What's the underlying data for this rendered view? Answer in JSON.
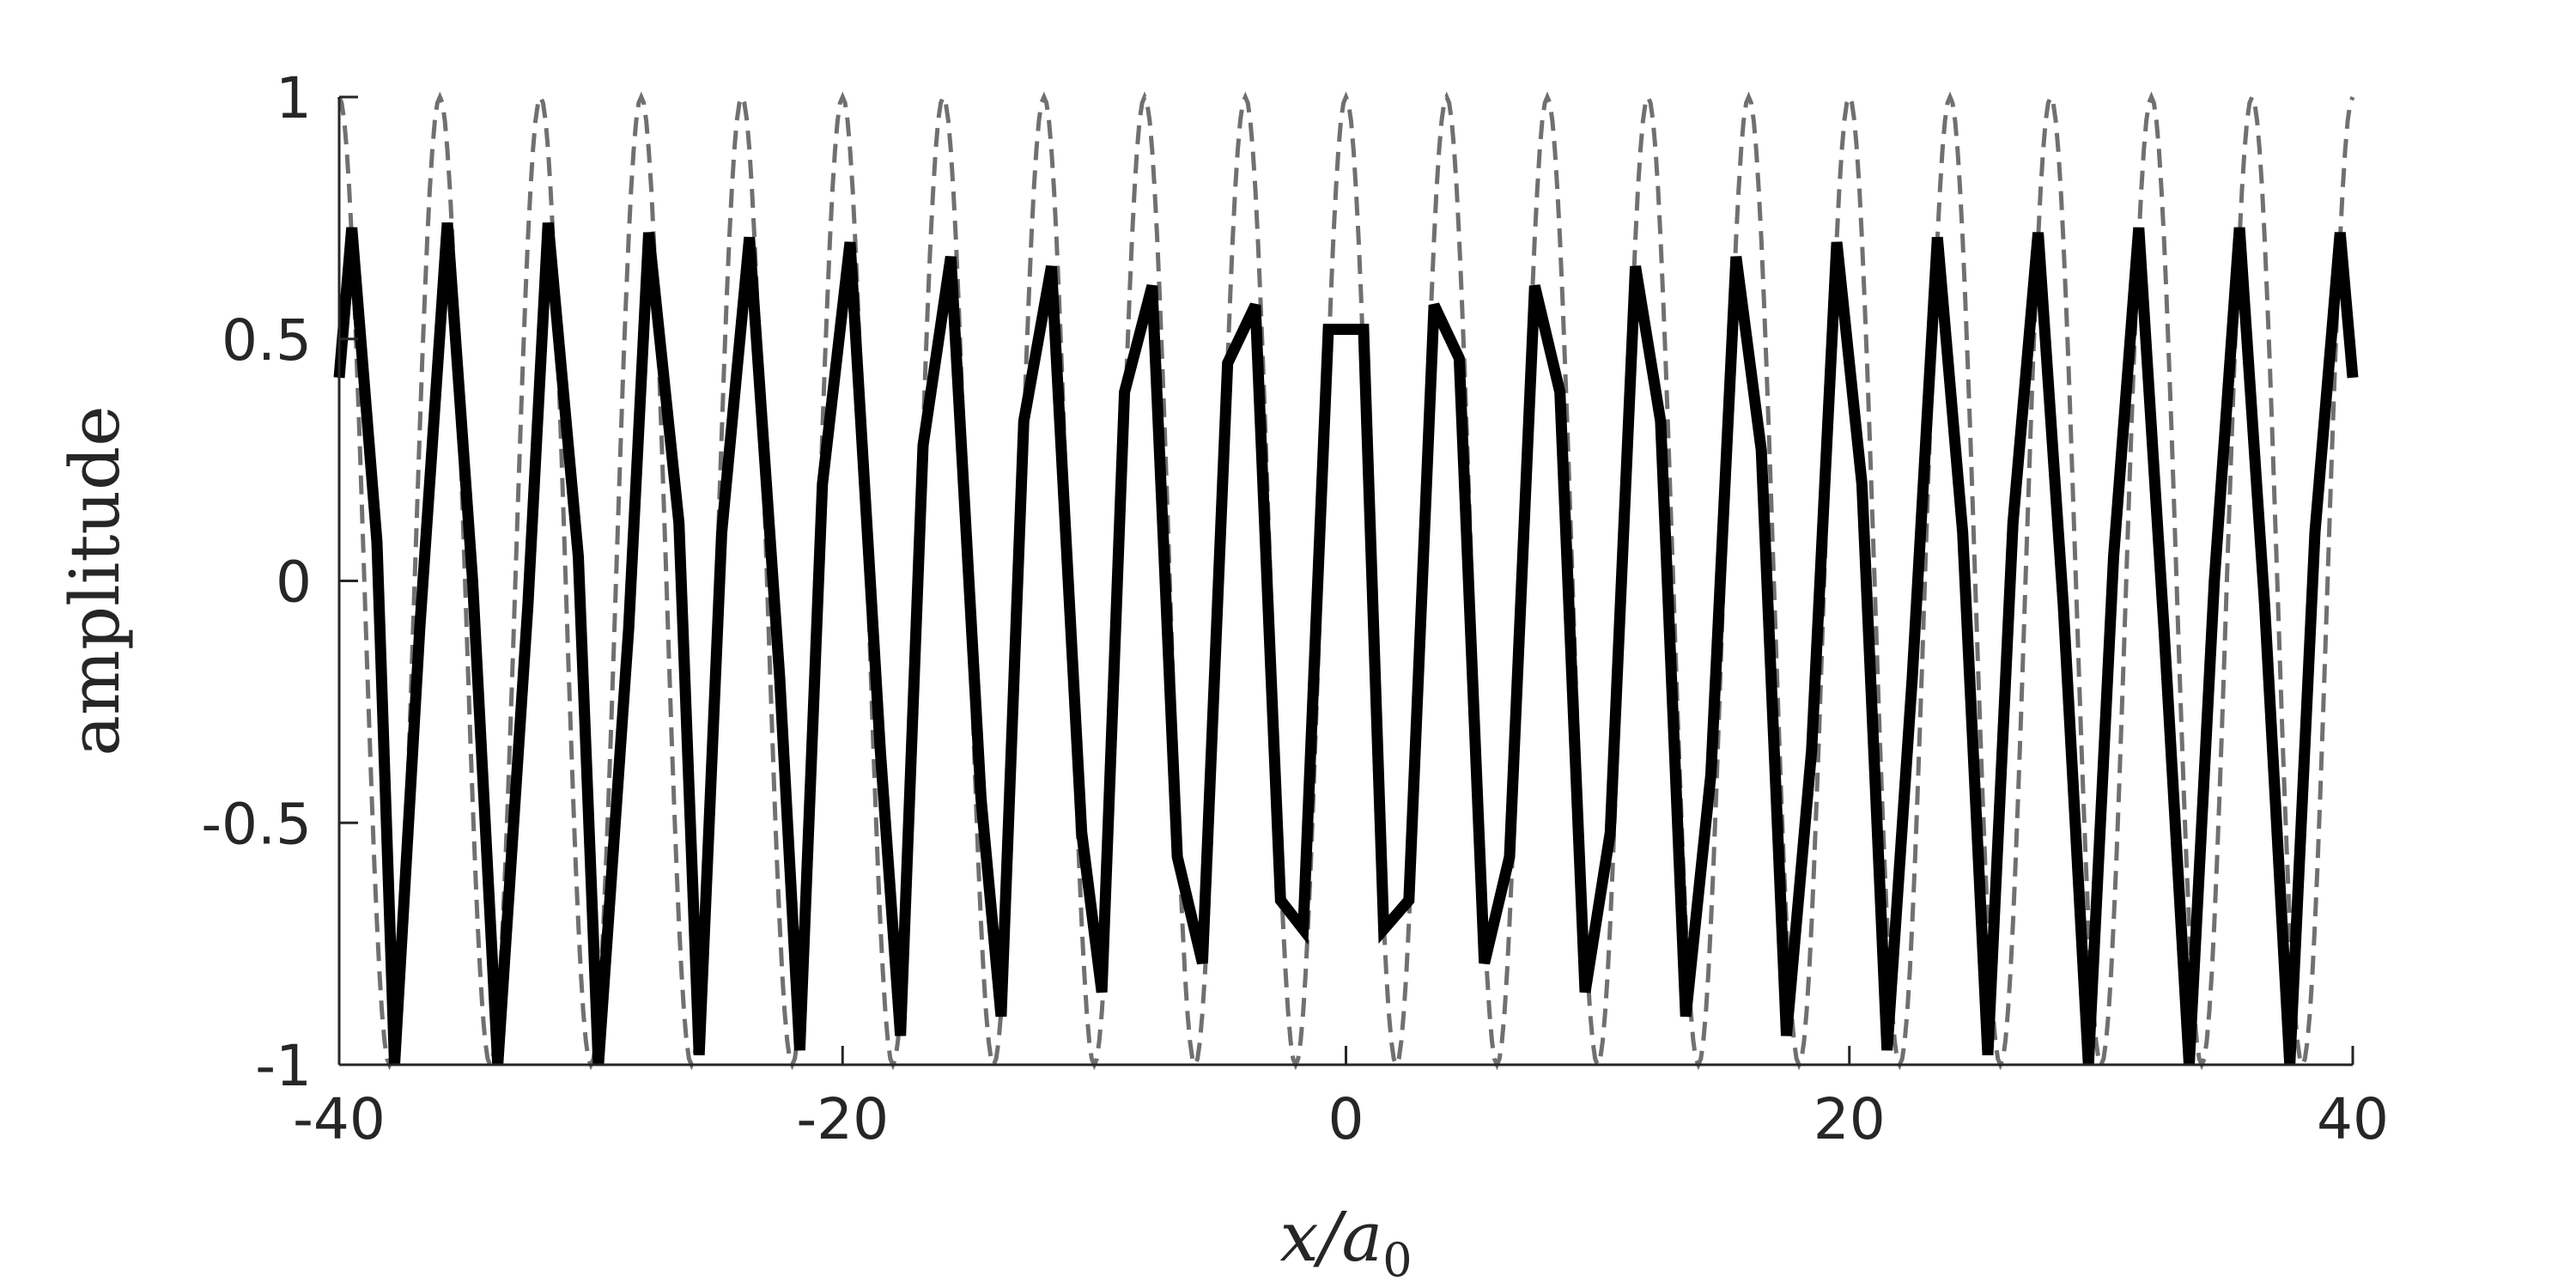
{
  "chart_data": {
    "type": "line",
    "xlabel": "x/a",
    "xlabel_subscript": "0",
    "ylabel": "amplitude",
    "xlim": [
      -40,
      40
    ],
    "ylim": [
      -1,
      1
    ],
    "xticks": [
      "-40",
      "-20",
      "0",
      "20",
      "40"
    ],
    "yticks": [
      "-1",
      "-0.5",
      "0",
      "0.5",
      "1"
    ],
    "grid": false,
    "series": [
      {
        "style": "dashed",
        "color": "#707070",
        "wave": {
          "amplitude": 1,
          "period": 4.0,
          "phase_x_of_max": 0
        },
        "points": []
      },
      {
        "style": "solid",
        "color": "#000000",
        "points": [
          [
            -40,
            0.42
          ],
          [
            -39.5,
            0.73
          ],
          [
            -38.5,
            0.08
          ],
          [
            -37.8,
            -1.0
          ],
          [
            -36.8,
            -0.1
          ],
          [
            -35.7,
            0.74
          ],
          [
            -34.7,
            0.0
          ],
          [
            -33.7,
            -1.0
          ],
          [
            -32.5,
            -0.05
          ],
          [
            -31.7,
            0.74
          ],
          [
            -30.5,
            0.05
          ],
          [
            -29.7,
            -1.0
          ],
          [
            -28.5,
            -0.1
          ],
          [
            -27.7,
            0.72
          ],
          [
            -26.5,
            0.12
          ],
          [
            -25.7,
            -0.98
          ],
          [
            -24.8,
            0.1
          ],
          [
            -23.7,
            0.71
          ],
          [
            -22.5,
            -0.2
          ],
          [
            -21.7,
            -0.97
          ],
          [
            -20.8,
            0.2
          ],
          [
            -19.7,
            0.7
          ],
          [
            -18.5,
            -0.35
          ],
          [
            -17.7,
            -0.94
          ],
          [
            -16.8,
            0.28
          ],
          [
            -15.7,
            0.67
          ],
          [
            -14.5,
            -0.45
          ],
          [
            -13.7,
            -0.9
          ],
          [
            -12.8,
            0.33
          ],
          [
            -11.7,
            0.65
          ],
          [
            -10.5,
            -0.52
          ],
          [
            -9.7,
            -0.85
          ],
          [
            -8.8,
            0.39
          ],
          [
            -7.7,
            0.61
          ],
          [
            -6.7,
            -0.57
          ],
          [
            -5.7,
            -0.79
          ],
          [
            -4.7,
            0.45
          ],
          [
            -3.6,
            0.57
          ],
          [
            -2.6,
            -0.66
          ],
          [
            -1.7,
            -0.72
          ],
          [
            -0.7,
            0.52
          ],
          [
            0.7,
            0.52
          ],
          [
            1.5,
            -0.72
          ],
          [
            2.5,
            -0.66
          ],
          [
            3.5,
            0.57
          ],
          [
            4.5,
            0.46
          ],
          [
            5.5,
            -0.79
          ],
          [
            6.5,
            -0.57
          ],
          [
            7.5,
            0.61
          ],
          [
            8.5,
            0.39
          ],
          [
            9.5,
            -0.85
          ],
          [
            10.5,
            -0.52
          ],
          [
            11.5,
            0.65
          ],
          [
            12.5,
            0.33
          ],
          [
            13.5,
            -0.9
          ],
          [
            14.5,
            -0.4
          ],
          [
            15.5,
            0.67
          ],
          [
            16.5,
            0.27
          ],
          [
            17.5,
            -0.94
          ],
          [
            18.5,
            -0.35
          ],
          [
            19.5,
            0.7
          ],
          [
            20.5,
            0.2
          ],
          [
            21.5,
            -0.97
          ],
          [
            22.5,
            -0.2
          ],
          [
            23.5,
            0.71
          ],
          [
            24.5,
            0.1
          ],
          [
            25.5,
            -0.98
          ],
          [
            26.5,
            0.12
          ],
          [
            27.5,
            0.72
          ],
          [
            28.5,
            -0.05
          ],
          [
            29.5,
            -1.0
          ],
          [
            30.5,
            0.05
          ],
          [
            31.5,
            0.73
          ],
          [
            32.5,
            -0.1
          ],
          [
            33.5,
            -1.0
          ],
          [
            34.5,
            0.0
          ],
          [
            35.5,
            0.73
          ],
          [
            36.5,
            -0.05
          ],
          [
            37.5,
            -1.0
          ],
          [
            38.5,
            0.1
          ],
          [
            39.5,
            0.72
          ],
          [
            40,
            0.42
          ]
        ]
      }
    ]
  }
}
